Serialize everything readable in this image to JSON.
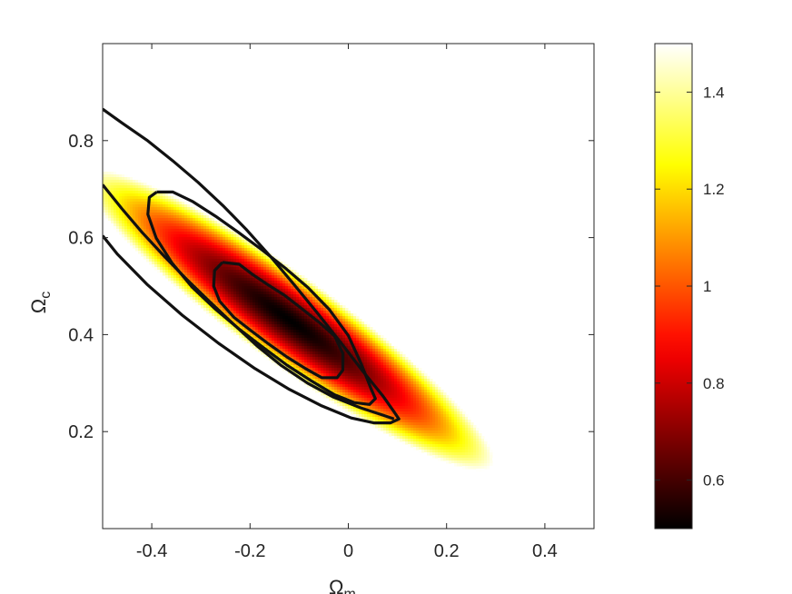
{
  "chart_data": {
    "type": "heatmap",
    "title": "",
    "xlabel": {
      "symbol": "Ω",
      "subscript": "m"
    },
    "ylabel": {
      "symbol": "Ω",
      "subscript": "c"
    },
    "xlim": [
      -0.5,
      0.5
    ],
    "ylim": [
      0.0,
      1.0
    ],
    "x_ticks": [
      -0.4,
      -0.2,
      0,
      0.2,
      0.4
    ],
    "x_tick_labels": [
      "-0.4",
      "-0.2",
      "0",
      "0.2",
      "0.4"
    ],
    "y_ticks": [
      0.2,
      0.4,
      0.6,
      0.8
    ],
    "y_tick_labels": [
      "0.2",
      "0.4",
      "0.6",
      "0.8"
    ],
    "colormap": "hot",
    "colorbar": {
      "range": [
        0.5,
        1.5
      ],
      "ticks": [
        0.6,
        0.8,
        1.0,
        1.2,
        1.4
      ],
      "tick_labels": [
        "0.6",
        "0.8",
        "1",
        "1.2",
        "1.4"
      ],
      "placement": "right"
    },
    "field": {
      "center_x": -0.12,
      "center_y": 0.43,
      "slope": -0.73,
      "min_value": 0.5,
      "max_value": 1.5
    },
    "contours": [
      {
        "level": 0.62,
        "points": [
          [
            -0.256,
            0.549
          ],
          [
            -0.222,
            0.545
          ],
          [
            -0.195,
            0.524
          ],
          [
            -0.164,
            0.503
          ],
          [
            -0.13,
            0.481
          ],
          [
            -0.093,
            0.452
          ],
          [
            -0.059,
            0.425
          ],
          [
            -0.028,
            0.397
          ],
          [
            -0.011,
            0.361
          ],
          [
            -0.011,
            0.327
          ],
          [
            -0.023,
            0.311
          ],
          [
            -0.054,
            0.311
          ],
          [
            -0.087,
            0.33
          ],
          [
            -0.125,
            0.354
          ],
          [
            -0.164,
            0.382
          ],
          [
            -0.199,
            0.409
          ],
          [
            -0.233,
            0.436
          ],
          [
            -0.262,
            0.469
          ],
          [
            -0.274,
            0.5
          ],
          [
            -0.272,
            0.532
          ],
          [
            -0.256,
            0.549
          ]
        ]
      },
      {
        "level": 0.78,
        "points": [
          [
            -0.39,
            0.694
          ],
          [
            -0.357,
            0.694
          ],
          [
            -0.316,
            0.674
          ],
          [
            -0.27,
            0.644
          ],
          [
            -0.224,
            0.611
          ],
          [
            -0.176,
            0.575
          ],
          [
            -0.127,
            0.536
          ],
          [
            -0.082,
            0.497
          ],
          [
            -0.039,
            0.452
          ],
          [
            0.0,
            0.398
          ],
          [
            0.026,
            0.34
          ],
          [
            0.046,
            0.289
          ],
          [
            0.055,
            0.268
          ],
          [
            0.043,
            0.256
          ],
          [
            0.012,
            0.26
          ],
          [
            -0.028,
            0.276
          ],
          [
            -0.076,
            0.305
          ],
          [
            -0.125,
            0.337
          ],
          [
            -0.174,
            0.374
          ],
          [
            -0.224,
            0.413
          ],
          [
            -0.272,
            0.454
          ],
          [
            -0.318,
            0.498
          ],
          [
            -0.359,
            0.548
          ],
          [
            -0.391,
            0.599
          ],
          [
            -0.408,
            0.648
          ],
          [
            -0.405,
            0.683
          ],
          [
            -0.39,
            0.694
          ]
        ]
      },
      {
        "level": 0.95,
        "points": [
          [
            -0.5,
            0.865
          ],
          [
            -0.46,
            0.836
          ],
          [
            -0.41,
            0.801
          ],
          [
            -0.358,
            0.759
          ],
          [
            -0.306,
            0.714
          ],
          [
            -0.255,
            0.666
          ],
          [
            -0.208,
            0.617
          ],
          [
            -0.16,
            0.563
          ],
          [
            -0.111,
            0.504
          ],
          [
            -0.062,
            0.443
          ],
          [
            -0.015,
            0.383
          ],
          [
            0.03,
            0.324
          ],
          [
            0.07,
            0.274
          ],
          [
            0.093,
            0.241
          ],
          [
            0.103,
            0.226
          ],
          [
            0.086,
            0.218
          ],
          [
            0.052,
            0.218
          ],
          [
            0.006,
            0.228
          ],
          [
            -0.054,
            0.253
          ],
          [
            -0.12,
            0.287
          ],
          [
            -0.19,
            0.33
          ],
          [
            -0.264,
            0.382
          ],
          [
            -0.338,
            0.44
          ],
          [
            -0.41,
            0.504
          ],
          [
            -0.47,
            0.566
          ],
          [
            -0.5,
            0.604
          ]
        ]
      },
      {
        "level": 0.95,
        "points": [
          [
            -0.5,
            0.709
          ],
          [
            -0.461,
            0.66
          ],
          [
            -0.42,
            0.611
          ],
          [
            -0.375,
            0.562
          ],
          [
            -0.33,
            0.515
          ],
          [
            -0.283,
            0.469
          ],
          [
            -0.234,
            0.422
          ],
          [
            -0.186,
            0.377
          ],
          [
            -0.136,
            0.336
          ],
          [
            -0.083,
            0.3
          ],
          [
            -0.03,
            0.271
          ],
          [
            0.025,
            0.249
          ],
          [
            0.07,
            0.234
          ],
          [
            0.093,
            0.226
          ]
        ]
      }
    ]
  }
}
